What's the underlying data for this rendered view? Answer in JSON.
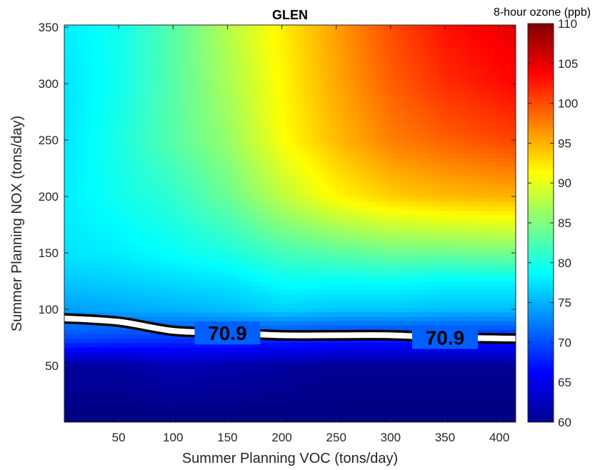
{
  "chart_data": {
    "type": "heatmap",
    "title": "GLEN",
    "xlabel": "Summer Planning VOC (tons/day)",
    "ylabel": "Summer Planning NOX (tons/day)",
    "xlim": [
      0,
      415
    ],
    "ylim": [
      0,
      352
    ],
    "x_ticks": [
      "50",
      "100",
      "150",
      "200",
      "250",
      "300",
      "350",
      "400"
    ],
    "y_ticks": [
      "50",
      "100",
      "150",
      "200",
      "250",
      "300",
      "350"
    ],
    "colorbar": {
      "label": "8-hour ozone (ppb)",
      "range": [
        60,
        110
      ],
      "ticks": [
        "60",
        "65",
        "70",
        "75",
        "80",
        "85",
        "90",
        "95",
        "100",
        "105",
        "110"
      ],
      "colormap": "jet"
    },
    "contour": {
      "level": 70.9,
      "labels": [
        "70.9",
        "70.9"
      ],
      "points": [
        [
          0,
          92
        ],
        [
          50,
          89
        ],
        [
          100,
          81
        ],
        [
          150,
          79
        ],
        [
          200,
          77
        ],
        [
          250,
          77
        ],
        [
          300,
          77
        ],
        [
          350,
          75
        ],
        [
          415,
          74
        ]
      ]
    },
    "ozone_grid": {
      "x": [
        0,
        50,
        100,
        150,
        200,
        250,
        300,
        350,
        415
      ],
      "y": [
        0,
        50,
        75,
        100,
        125,
        150,
        200,
        250,
        300,
        352
      ],
      "z": [
        [
          60,
          60,
          60,
          60,
          60,
          60,
          60,
          60,
          60
        ],
        [
          61.5,
          61.5,
          62.5,
          62,
          61.5,
          61,
          61,
          61,
          61
        ],
        [
          70,
          69.5,
          69,
          69,
          68.5,
          68,
          68,
          68,
          68
        ],
        [
          74,
          74.5,
          75,
          75.5,
          76.5,
          76,
          76,
          75.5,
          75.5
        ],
        [
          76,
          76.5,
          77,
          77.5,
          79,
          79,
          79,
          78.5,
          78.5
        ],
        [
          77.5,
          78,
          79,
          80,
          82,
          83,
          84,
          84,
          84.5
        ],
        [
          78,
          79.5,
          81,
          84,
          88,
          91.5,
          93.5,
          94.5,
          95
        ],
        [
          77.5,
          80,
          83,
          86,
          91,
          94.5,
          97.5,
          99,
          100.5
        ],
        [
          77.5,
          79.5,
          83,
          87,
          91.5,
          95.5,
          99,
          101.5,
          103.5
        ],
        [
          78,
          79.5,
          83,
          87.5,
          92,
          96,
          100,
          103,
          105
        ]
      ]
    }
  }
}
